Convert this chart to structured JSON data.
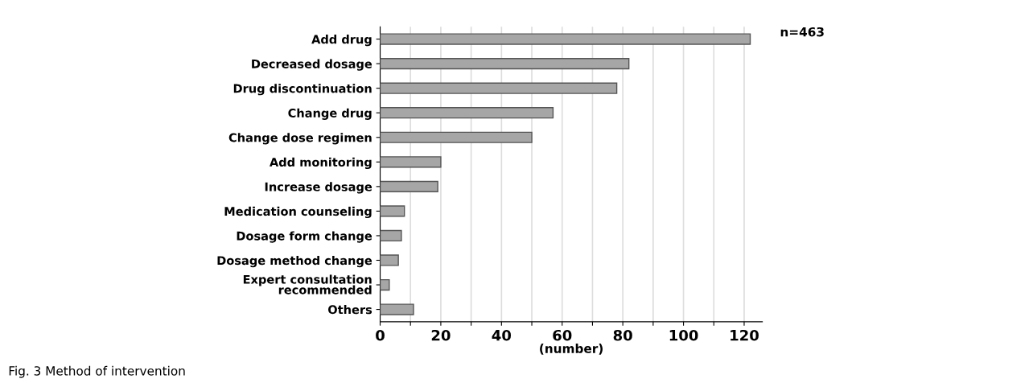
{
  "chart_data": {
    "type": "bar",
    "orientation": "horizontal",
    "xlabel": "(number)",
    "categories": [
      "Add drug",
      "Decreased dosage",
      "Drug discontinuation",
      "Change drug",
      "Change dose regimen",
      "Add monitoring",
      "Increase dosage",
      "Medication counseling",
      "Dosage form change",
      "Dosage method change",
      "Expert consultation\nrecommended",
      "Others"
    ],
    "values": [
      122,
      82,
      78,
      57,
      50,
      20,
      19,
      8,
      7,
      6,
      3,
      11
    ],
    "color": "#a6a6a6",
    "xlim": [
      0,
      126
    ],
    "xticks": [
      0,
      {
        "value": 10,
        "label": null
      },
      20,
      {
        "value": 30,
        "label": null
      },
      40,
      {
        "value": 50,
        "label": null
      },
      60,
      {
        "value": 70,
        "label": null
      },
      80,
      {
        "value": 90,
        "label": null
      },
      100,
      {
        "value": 110,
        "label": null
      },
      120
    ],
    "grid": "x",
    "annotations": [
      "n=463",
      "Fig. 3 Method of intervention"
    ]
  }
}
